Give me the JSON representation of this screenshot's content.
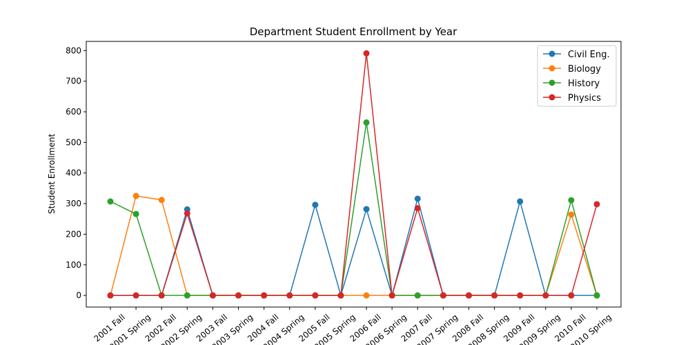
{
  "chart_data": {
    "type": "line",
    "title": "Department Student Enrollment by Year",
    "xlabel": "",
    "ylabel": "Student Enrollment",
    "categories": [
      "2001 Fall",
      "2001 Spring",
      "2002 Fall",
      "2002 Spring",
      "2003 Fall",
      "2003 Spring",
      "2004 Fall",
      "2004 Spring",
      "2005 Fall",
      "2005 Spring",
      "2006 Fall",
      "2006 Spring",
      "2007 Fall",
      "2007 Spring",
      "2008 Fall",
      "2008 Spring",
      "2009 Fall",
      "2009 Spring",
      "2010 Fall",
      "2010 Spring"
    ],
    "yticks": [
      0,
      100,
      200,
      300,
      400,
      500,
      600,
      700,
      800
    ],
    "ylim": [
      -38,
      830
    ],
    "grid": false,
    "legend_position": "top-right",
    "series": [
      {
        "name": "Civil Eng.",
        "color": "#1f77b4",
        "values": [
          0,
          0,
          0,
          281,
          0,
          0,
          0,
          0,
          296,
          0,
          282,
          0,
          316,
          0,
          0,
          0,
          307,
          0,
          0,
          0
        ]
      },
      {
        "name": "Biology",
        "color": "#ff7f0e",
        "values": [
          0,
          325,
          312,
          0,
          0,
          0,
          0,
          0,
          0,
          0,
          0,
          0,
          0,
          0,
          0,
          0,
          0,
          0,
          264,
          0
        ]
      },
      {
        "name": "History",
        "color": "#2ca02c",
        "values": [
          307,
          266,
          0,
          0,
          0,
          0,
          0,
          0,
          0,
          0,
          565,
          0,
          0,
          0,
          0,
          0,
          0,
          0,
          311,
          0
        ]
      },
      {
        "name": "Physics",
        "color": "#d62728",
        "values": [
          0,
          0,
          0,
          268,
          0,
          0,
          0,
          0,
          0,
          0,
          791,
          0,
          285,
          0,
          0,
          0,
          0,
          0,
          0,
          298
        ]
      }
    ]
  }
}
